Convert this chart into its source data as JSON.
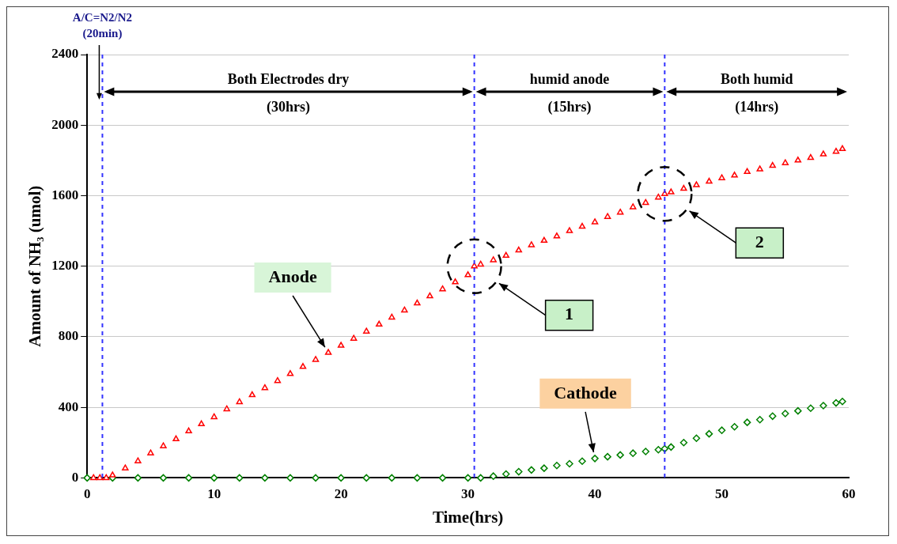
{
  "chart_data": {
    "type": "scatter",
    "xlabel": "Time(hrs)",
    "ylabel": "Amount of NH₃ (umol)",
    "xlim": [
      0,
      60
    ],
    "ylim": [
      0,
      2400
    ],
    "xticks": [
      0,
      10,
      20,
      30,
      40,
      50,
      60
    ],
    "yticks": [
      0,
      400,
      800,
      1200,
      1600,
      2000,
      2400
    ],
    "grid": "y",
    "legend": false,
    "series": [
      {
        "name": "Anode",
        "color": "#ff0000",
        "marker": "triangle",
        "x": [
          0.5,
          1,
          1.5,
          2,
          3,
          4,
          5,
          6,
          7,
          8,
          9,
          10,
          11,
          12,
          13,
          14,
          15,
          16,
          17,
          18,
          19,
          20,
          21,
          22,
          23,
          24,
          25,
          26,
          27,
          28,
          29,
          30,
          30.5,
          31,
          32,
          33,
          34,
          35,
          36,
          37,
          38,
          39,
          40,
          41,
          42,
          43,
          44,
          45,
          45.5,
          46,
          47,
          48,
          49,
          50,
          51,
          52,
          53,
          54,
          55,
          56,
          57,
          58,
          59,
          59.5
        ],
        "values": [
          0,
          0,
          0,
          15,
          55,
          95,
          140,
          180,
          220,
          265,
          305,
          345,
          390,
          430,
          470,
          510,
          550,
          590,
          630,
          670,
          710,
          750,
          790,
          830,
          870,
          910,
          950,
          990,
          1030,
          1070,
          1110,
          1150,
          1200,
          1210,
          1235,
          1260,
          1290,
          1320,
          1345,
          1370,
          1400,
          1425,
          1450,
          1480,
          1505,
          1535,
          1560,
          1590,
          1610,
          1620,
          1640,
          1660,
          1680,
          1700,
          1715,
          1735,
          1750,
          1770,
          1785,
          1800,
          1815,
          1835,
          1850,
          1865
        ]
      },
      {
        "name": "Cathode",
        "color": "#008000",
        "marker": "diamond",
        "x": [
          0,
          2,
          4,
          6,
          8,
          10,
          12,
          14,
          16,
          18,
          20,
          22,
          24,
          26,
          28,
          30,
          31,
          32,
          33,
          34,
          35,
          36,
          37,
          38,
          39,
          40,
          41,
          42,
          43,
          44,
          45,
          45.5,
          46,
          47,
          48,
          49,
          50,
          51,
          52,
          53,
          54,
          55,
          56,
          57,
          58,
          59,
          59.5
        ],
        "values": [
          0,
          0,
          0,
          0,
          0,
          0,
          0,
          0,
          0,
          0,
          0,
          0,
          0,
          0,
          0,
          0,
          0,
          10,
          22,
          35,
          45,
          55,
          70,
          80,
          95,
          110,
          120,
          130,
          140,
          150,
          160,
          165,
          175,
          200,
          225,
          250,
          270,
          290,
          315,
          330,
          350,
          365,
          380,
          395,
          410,
          425,
          433
        ]
      }
    ],
    "ref_lines": [
      {
        "axis": "x",
        "value": 1.2,
        "label": "A/C=N2/N2 (20min)",
        "color": "#3333ff",
        "line_style": "dashed"
      },
      {
        "axis": "x",
        "value": 30.5,
        "color": "#3333ff",
        "line_style": "dashed"
      },
      {
        "axis": "x",
        "value": 45.5,
        "color": "#3333ff",
        "line_style": "dashed"
      }
    ],
    "annotations": [
      "Both Electrodes dry (30hrs)",
      "humid anode (15hrs)",
      "Both humid (14hrs)",
      "1",
      "2"
    ]
  }
}
